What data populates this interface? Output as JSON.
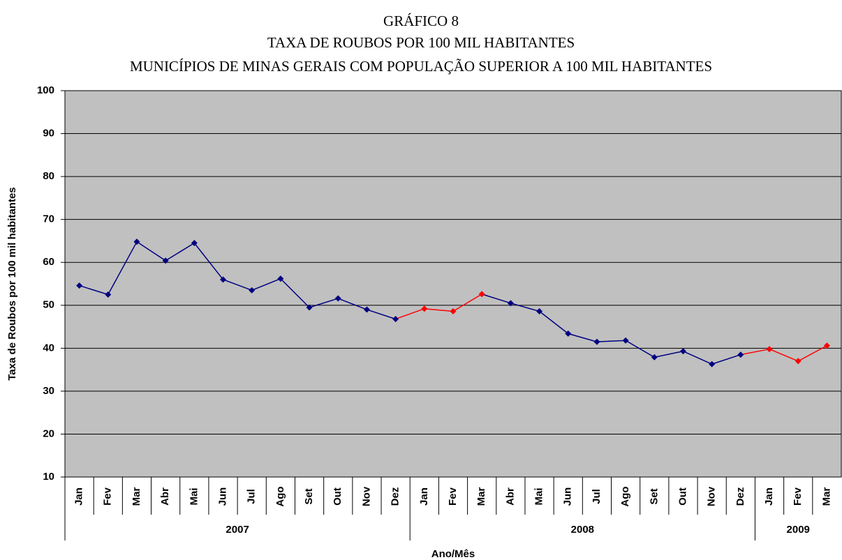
{
  "chart_data": {
    "type": "line",
    "title": "GRÁFICO 8",
    "subtitle": "TAXA DE ROUBOS POR 100 MIL HABITANTES",
    "subtitle2": "MUNICÍPIOS DE MINAS GERAIS COM POPULAÇÃO SUPERIOR A 100 MIL HABITANTES",
    "x_label": "Ano/Mês",
    "y_label": "Taxa de Roubos por 100 mil habitantes",
    "category_groups": [
      {
        "label": "2007",
        "categories": [
          "Jan",
          "Fev",
          "Mar",
          "Abr",
          "Mai",
          "Jun",
          "Jul",
          "Ago",
          "Set",
          "Out",
          "Nov",
          "Dez"
        ]
      },
      {
        "label": "2008",
        "categories": [
          "Jan",
          "Fev",
          "Mar",
          "Abr",
          "Mai",
          "Jun",
          "Jul",
          "Ago",
          "Set",
          "Out",
          "Nov",
          "Dez"
        ]
      },
      {
        "label": "2009",
        "categories": [
          "Jan",
          "Fev",
          "Mar"
        ]
      }
    ],
    "values": [
      54.6,
      52.5,
      64.8,
      60.4,
      64.5,
      56.0,
      53.5,
      56.2,
      49.5,
      51.6,
      49.0,
      46.8,
      49.2,
      48.6,
      52.6,
      50.5,
      48.6,
      43.4,
      41.5,
      41.8,
      37.9,
      39.3,
      36.3,
      38.5,
      39.8,
      37.0,
      40.6
    ],
    "point_colors": [
      "#000080",
      "#000080",
      "#000080",
      "#000080",
      "#000080",
      "#000080",
      "#000080",
      "#000080",
      "#000080",
      "#000080",
      "#000080",
      "#000080",
      "#ff0000",
      "#ff0000",
      "#ff0000",
      "#000080",
      "#000080",
      "#000080",
      "#000080",
      "#000080",
      "#000080",
      "#000080",
      "#000080",
      "#000080",
      "#ff0000",
      "#ff0000",
      "#ff0000"
    ],
    "ylim": [
      10,
      100
    ],
    "yticks": [
      10,
      20,
      30,
      40,
      50,
      60,
      70,
      80,
      90,
      100
    ],
    "grid": true,
    "plot_background": "#c0c0c0"
  }
}
